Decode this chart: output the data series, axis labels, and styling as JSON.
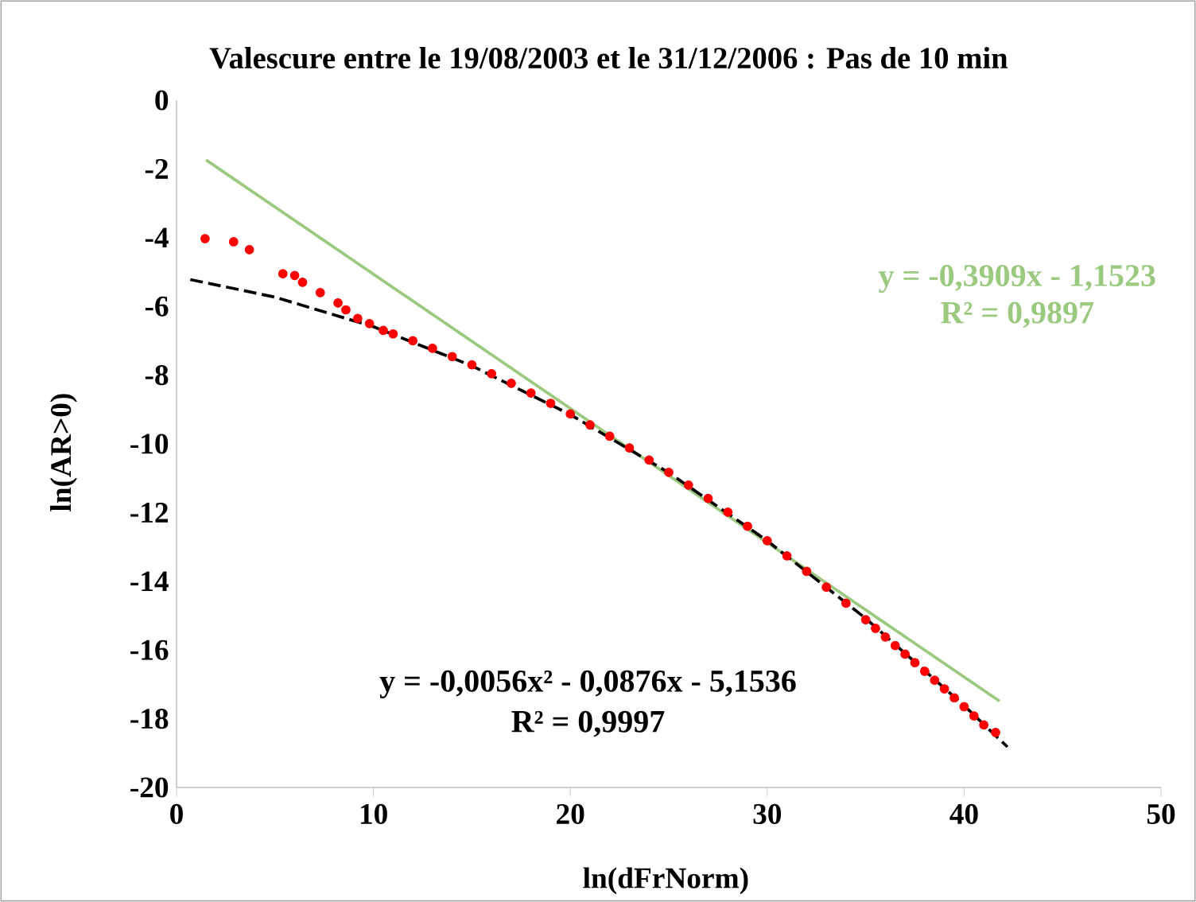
{
  "chart_data": {
    "type": "scatter",
    "title": "Valescure entre le 19/08/2003 et le 31/12/2006 : Pas de 10 min",
    "xlabel": "ln(dFrNorm)",
    "ylabel": "ln(AR>0)",
    "xlim": [
      0,
      50
    ],
    "ylim": [
      -20,
      0
    ],
    "xticks": [
      0,
      10,
      20,
      30,
      40,
      50
    ],
    "yticks": [
      -20,
      -18,
      -16,
      -14,
      -12,
      -10,
      -8,
      -6,
      -4,
      -2,
      0
    ],
    "grid": false,
    "series": [
      {
        "marker": "circle",
        "color": "#ff0000",
        "x": [
          1.45,
          2.9,
          3.7,
          5.4,
          6.0,
          6.4,
          7.3,
          8.2,
          8.6,
          9.2,
          9.8,
          10.5,
          11,
          12,
          13,
          14,
          15,
          16,
          17,
          18,
          19,
          20,
          21,
          22,
          23,
          24,
          25,
          26,
          27,
          28,
          29,
          30,
          31,
          32,
          33,
          34,
          35,
          35.5,
          36,
          36.5,
          37,
          37.5,
          38,
          38.5,
          39,
          39.5,
          40,
          40.5,
          41,
          41.6
        ],
        "values": [
          -4.03,
          -4.12,
          -4.35,
          -5.05,
          -5.1,
          -5.3,
          -5.6,
          -5.9,
          -6.1,
          -6.35,
          -6.5,
          -6.7,
          -6.8,
          -7.0,
          -7.22,
          -7.46,
          -7.7,
          -7.96,
          -8.24,
          -8.52,
          -8.82,
          -9.13,
          -9.45,
          -9.78,
          -10.12,
          -10.47,
          -10.83,
          -11.2,
          -11.59,
          -11.99,
          -12.4,
          -12.82,
          -13.26,
          -13.71,
          -14.17,
          -14.64,
          -15.12,
          -15.37,
          -15.62,
          -15.87,
          -16.12,
          -16.37,
          -16.62,
          -16.88,
          -17.13,
          -17.39,
          -17.65,
          -17.92,
          -18.18,
          -18.4
        ]
      },
      {
        "type": "line",
        "marker": "none",
        "line_style": "solid",
        "color": "#9bc97f",
        "x": [
          1.5,
          41.8
        ],
        "values": [
          -1.74,
          -17.49
        ]
      },
      {
        "type": "line",
        "marker": "none",
        "line_style": "dashed",
        "color": "#000000",
        "x": [
          0.7,
          5,
          10,
          15,
          20,
          25,
          30,
          35,
          40,
          42.2
        ],
        "values": [
          -5.22,
          -5.73,
          -6.59,
          -7.73,
          -9.15,
          -10.84,
          -12.82,
          -15.08,
          -17.62,
          -18.82
        ]
      }
    ],
    "annotations": [
      "y = -0,3909x - 1,1523",
      "R² = 0,9897",
      "y = -0,0056x² - 0,0876x - 5,1536",
      "R² = 0,9997"
    ]
  }
}
